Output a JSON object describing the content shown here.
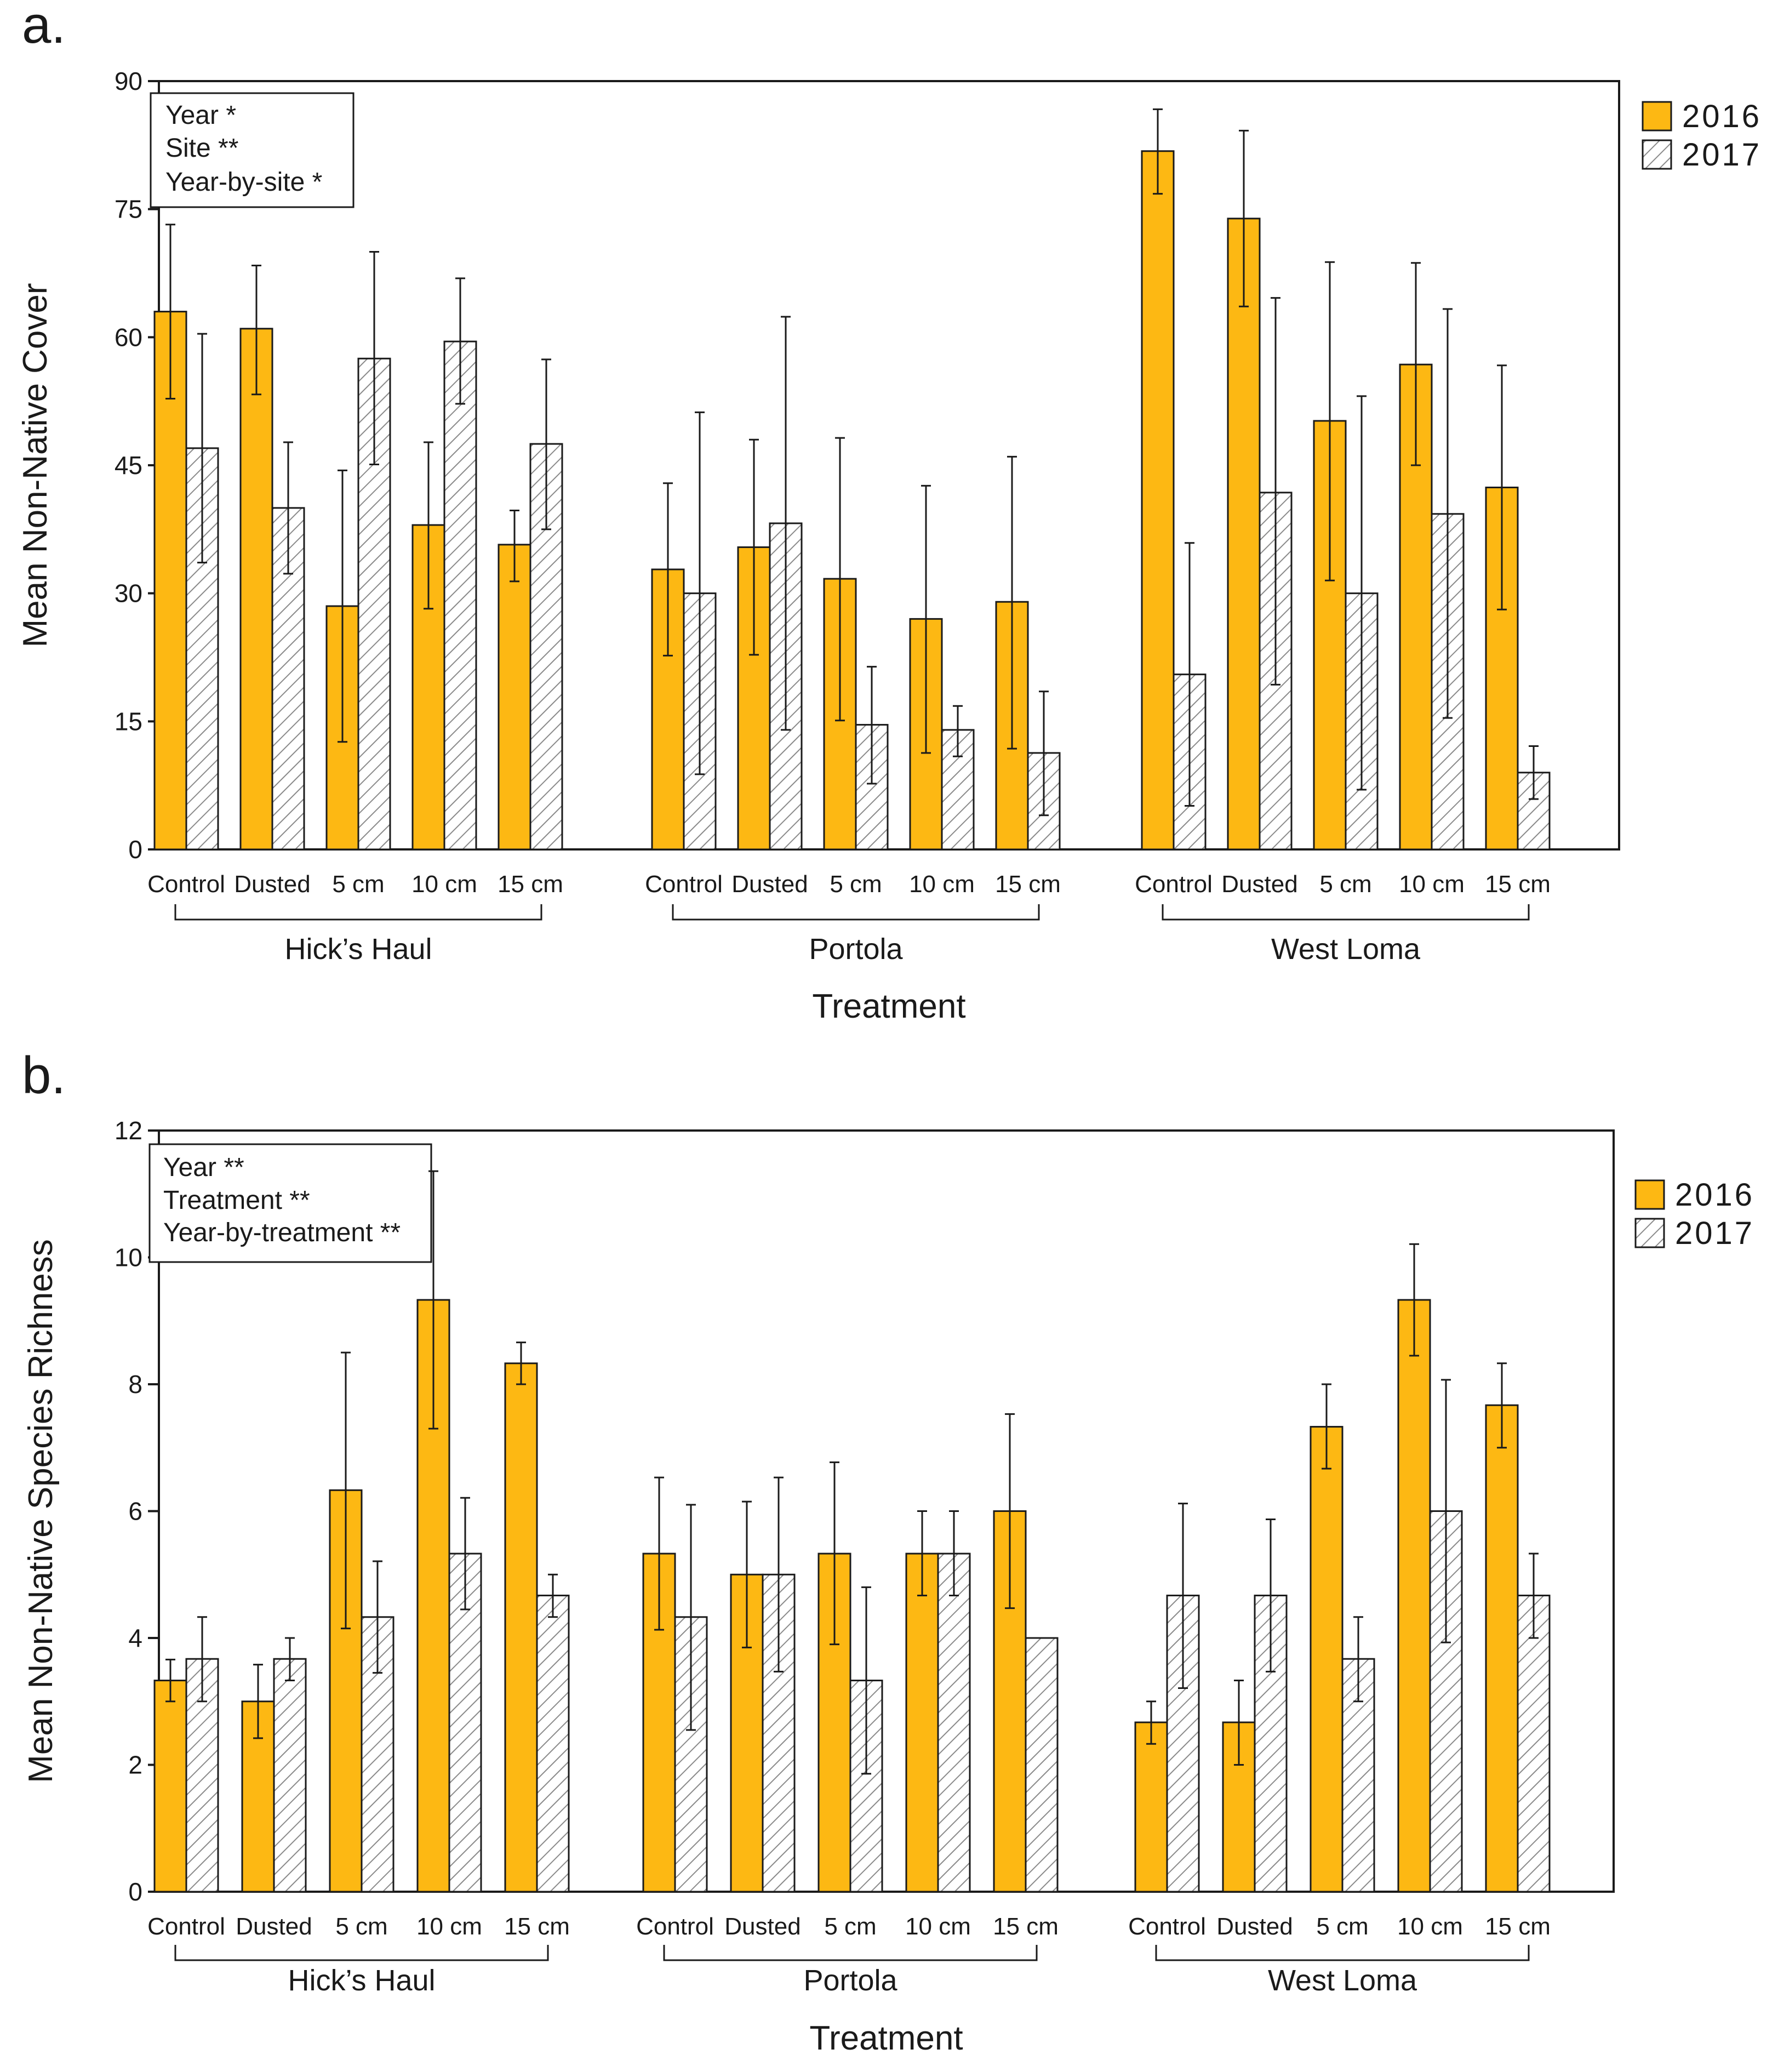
{
  "colors": {
    "bar_2016": "#FDB813",
    "hatch_2017": "#8a8a8a",
    "axis": "#1a1a1a"
  },
  "legend": [
    "2016",
    "2017"
  ],
  "chart_data": [
    {
      "type": "bar",
      "panel": "a.",
      "ylabel": "Mean Non-Native Cover",
      "xlabel": "Treatment",
      "ylim": [
        0,
        90
      ],
      "yticks": [
        0,
        15,
        30,
        45,
        60,
        75,
        90
      ],
      "stats": [
        "Year *",
        "Site **",
        "Year-by-site *"
      ],
      "sites": [
        {
          "name": "Hick’s Haul",
          "categories": [
            "Control",
            "Dusted",
            "5 cm",
            "10 cm",
            "15 cm"
          ],
          "series": [
            {
              "name": "2016",
              "values": [
                63.0,
                61.0,
                28.5,
                38.0,
                35.7
              ],
              "err_low": [
                52.8,
                53.3,
                12.6,
                28.2,
                31.4
              ],
              "err_high": [
                73.2,
                68.4,
                44.4,
                47.7,
                39.7
              ]
            },
            {
              "name": "2017",
              "values": [
                47.0,
                40.0,
                57.5,
                59.5,
                47.5
              ],
              "err_low": [
                33.6,
                32.3,
                45.1,
                52.2,
                37.5
              ],
              "err_high": [
                60.4,
                47.7,
                70.0,
                66.9,
                57.4
              ]
            }
          ]
        },
        {
          "name": "Portola",
          "categories": [
            "Control",
            "Dusted",
            "5 cm",
            "10 cm",
            "15 cm"
          ],
          "series": [
            {
              "name": "2016",
              "values": [
                32.8,
                35.4,
                31.7,
                27.0,
                29.0
              ],
              "err_low": [
                22.7,
                22.8,
                15.1,
                11.3,
                11.8
              ],
              "err_high": [
                42.9,
                48.0,
                48.2,
                42.6,
                46.0
              ]
            },
            {
              "name": "2017",
              "values": [
                30.0,
                38.2,
                14.6,
                14.0,
                11.3
              ],
              "err_low": [
                8.8,
                14.0,
                7.7,
                10.9,
                4.0
              ],
              "err_high": [
                51.2,
                62.4,
                21.4,
                16.8,
                18.5
              ]
            }
          ]
        },
        {
          "name": "West Loma",
          "categories": [
            "Control",
            "Dusted",
            "5 cm",
            "10 cm",
            "15 cm"
          ],
          "series": [
            {
              "name": "2016",
              "values": [
                81.8,
                73.9,
                50.2,
                56.8,
                42.4
              ],
              "err_low": [
                76.8,
                63.6,
                31.5,
                45.0,
                28.1
              ],
              "err_high": [
                86.7,
                84.2,
                68.8,
                68.7,
                56.7
              ]
            },
            {
              "name": "2017",
              "values": [
                20.5,
                41.8,
                30.0,
                39.3,
                9.0
              ],
              "err_low": [
                5.1,
                19.3,
                7.0,
                15.4,
                5.9
              ],
              "err_high": [
                35.9,
                64.6,
                53.1,
                63.3,
                12.1
              ]
            }
          ]
        }
      ]
    },
    {
      "type": "bar",
      "panel": "b.",
      "ylabel": "Mean Non-Native Species Richness",
      "xlabel": "Treatment",
      "ylim": [
        0,
        12
      ],
      "yticks": [
        0,
        2,
        4,
        6,
        8,
        10,
        12
      ],
      "stats": [
        "Year **",
        "Treatment **",
        "Year-by-treatment **"
      ],
      "sites": [
        {
          "name": "Hick’s Haul",
          "categories": [
            "Control",
            "Dusted",
            "5 cm",
            "10 cm",
            "15 cm"
          ],
          "series": [
            {
              "name": "2016",
              "values": [
                3.33,
                3.0,
                6.33,
                9.33,
                8.33
              ],
              "err_low": [
                3.0,
                2.42,
                4.15,
                7.3,
                8.0
              ],
              "err_high": [
                3.66,
                3.58,
                8.5,
                11.36,
                8.66
              ]
            },
            {
              "name": "2017",
              "values": [
                3.67,
                3.67,
                4.33,
                5.33,
                4.67
              ],
              "err_low": [
                3.0,
                3.33,
                3.45,
                4.45,
                4.33
              ],
              "err_high": [
                4.33,
                4.0,
                5.21,
                6.21,
                5.0
              ]
            }
          ]
        },
        {
          "name": "Portola",
          "categories": [
            "Control",
            "Dusted",
            "5 cm",
            "10 cm",
            "15 cm"
          ],
          "series": [
            {
              "name": "2016",
              "values": [
                5.33,
                5.0,
                5.33,
                5.33,
                6.0
              ],
              "err_low": [
                4.13,
                3.85,
                3.9,
                4.67,
                4.47
              ],
              "err_high": [
                6.53,
                6.15,
                6.77,
                6.0,
                7.53
              ]
            },
            {
              "name": "2017",
              "values": [
                4.33,
                5.0,
                3.33,
                5.33,
                4.0
              ],
              "err_low": [
                2.55,
                3.47,
                1.86,
                4.67,
                4.0
              ],
              "err_high": [
                6.1,
                6.53,
                4.8,
                6.0,
                4.0
              ]
            }
          ]
        },
        {
          "name": "West Loma",
          "categories": [
            "Control",
            "Dusted",
            "5 cm",
            "10 cm",
            "15 cm"
          ],
          "series": [
            {
              "name": "2016",
              "values": [
                2.67,
                2.67,
                7.33,
                9.33,
                7.67
              ],
              "err_low": [
                2.33,
                2.0,
                6.67,
                8.45,
                7.0
              ],
              "err_high": [
                3.0,
                3.33,
                8.0,
                10.21,
                8.33
              ]
            },
            {
              "name": "2017",
              "values": [
                4.67,
                4.67,
                3.67,
                6.0,
                4.67
              ],
              "err_low": [
                3.21,
                3.47,
                3.0,
                3.93,
                4.0
              ],
              "err_high": [
                6.12,
                5.87,
                4.33,
                8.07,
                5.33
              ]
            }
          ]
        }
      ]
    }
  ]
}
